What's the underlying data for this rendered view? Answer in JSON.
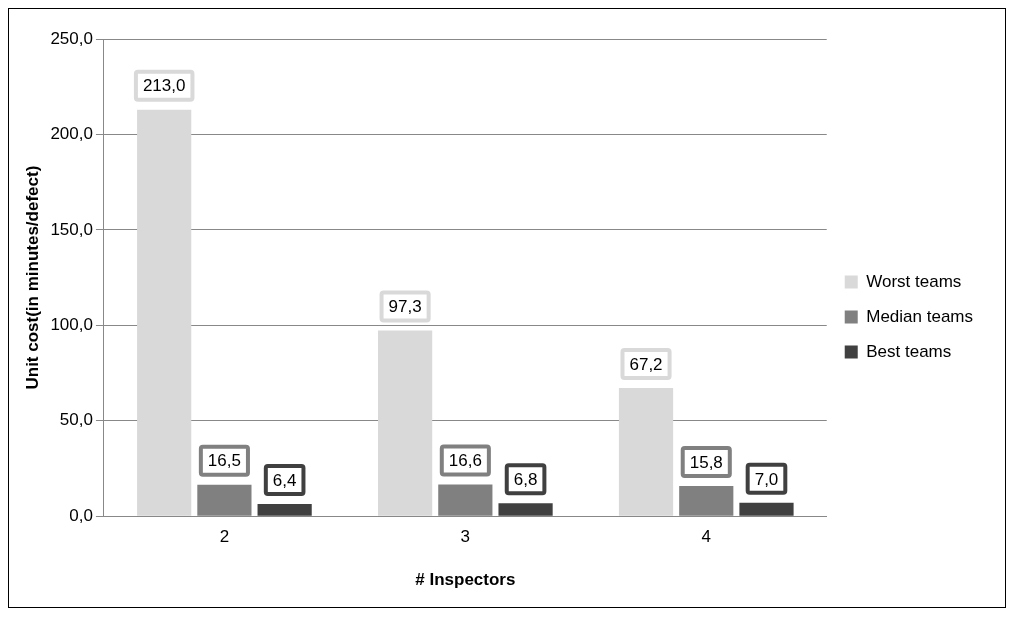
{
  "chart_data": {
    "type": "bar",
    "xlabel": "# Inspectors",
    "ylabel": "Unit cost(in minutes/defect)",
    "categories": [
      "2",
      "3",
      "4"
    ],
    "series": [
      {
        "name": "Worst teams",
        "color": "#d9d9d9",
        "values": [
          213.0,
          97.3,
          67.2
        ],
        "value_labels": [
          "213,0",
          "97,3",
          "67,2"
        ]
      },
      {
        "name": "Median teams",
        "color": "#808080",
        "values": [
          16.5,
          16.6,
          15.8
        ],
        "value_labels": [
          "16,5",
          "16,6",
          "15,8"
        ]
      },
      {
        "name": "Best teams",
        "color": "#404040",
        "values": [
          6.4,
          6.8,
          7.0
        ],
        "value_labels": [
          "6,4",
          "6,8",
          "7,0"
        ]
      }
    ],
    "ylim": [
      0,
      250
    ],
    "yticks": [
      {
        "value": 0,
        "label": "0,0"
      },
      {
        "value": 50,
        "label": "50,0"
      },
      {
        "value": 100,
        "label": "100,0"
      },
      {
        "value": 150,
        "label": "150,0"
      },
      {
        "value": 200,
        "label": "200,0"
      },
      {
        "value": 250,
        "label": "250,0"
      }
    ],
    "grid": "y",
    "legend": "right"
  }
}
